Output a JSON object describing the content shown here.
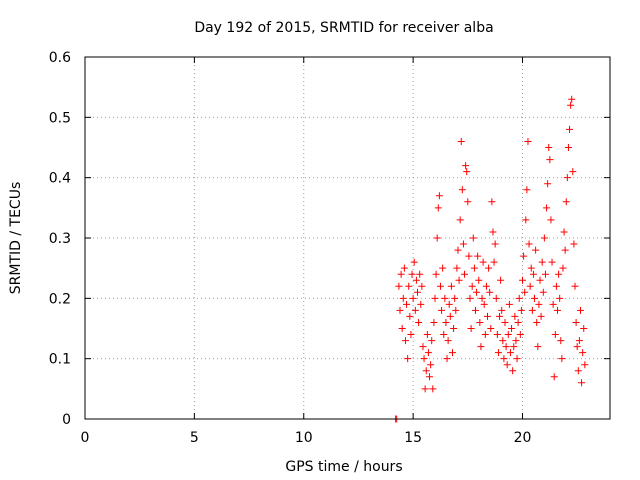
{
  "chart_data": {
    "type": "scatter",
    "title": "Day 192 of 2015, SRMTID for receiver alba",
    "xlabel": "GPS time / hours",
    "ylabel": "SRMTID / TECUs",
    "xlim": [
      0,
      24
    ],
    "ylim": [
      0,
      0.6
    ],
    "xticks": [
      0,
      5,
      10,
      15,
      20
    ],
    "yticks": [
      0,
      0.1,
      0.2,
      0.3,
      0.4,
      0.5,
      0.6
    ],
    "xtick_labels": [
      "0",
      "5",
      "10",
      "15",
      "20"
    ],
    "ytick_labels": [
      "0",
      "0.1",
      "0.2",
      "0.3",
      "0.4",
      "0.5",
      "0.6"
    ],
    "grid": true,
    "marker": "+",
    "color": "#ff0000",
    "series": [
      {
        "name": "SRMTID",
        "points": [
          [
            14.2,
            0.0
          ],
          [
            14.25,
            0.0
          ],
          [
            14.35,
            0.22
          ],
          [
            14.4,
            0.18
          ],
          [
            14.45,
            0.24
          ],
          [
            14.5,
            0.15
          ],
          [
            14.55,
            0.2
          ],
          [
            14.6,
            0.25
          ],
          [
            14.65,
            0.13
          ],
          [
            14.7,
            0.19
          ],
          [
            14.75,
            0.1
          ],
          [
            14.8,
            0.22
          ],
          [
            14.85,
            0.17
          ],
          [
            14.9,
            0.14
          ],
          [
            14.95,
            0.24
          ],
          [
            15.0,
            0.2
          ],
          [
            15.05,
            0.26
          ],
          [
            15.1,
            0.18
          ],
          [
            15.15,
            0.23
          ],
          [
            15.2,
            0.21
          ],
          [
            15.25,
            0.16
          ],
          [
            15.3,
            0.24
          ],
          [
            15.35,
            0.19
          ],
          [
            15.4,
            0.22
          ],
          [
            15.45,
            0.12
          ],
          [
            15.5,
            0.1
          ],
          [
            15.55,
            0.05
          ],
          [
            15.6,
            0.08
          ],
          [
            15.65,
            0.14
          ],
          [
            15.7,
            0.11
          ],
          [
            15.75,
            0.07
          ],
          [
            15.8,
            0.09
          ],
          [
            15.85,
            0.13
          ],
          [
            15.9,
            0.05
          ],
          [
            15.95,
            0.16
          ],
          [
            16.0,
            0.2
          ],
          [
            16.05,
            0.24
          ],
          [
            16.1,
            0.3
          ],
          [
            16.15,
            0.35
          ],
          [
            16.2,
            0.37
          ],
          [
            16.25,
            0.22
          ],
          [
            16.3,
            0.18
          ],
          [
            16.35,
            0.25
          ],
          [
            16.4,
            0.14
          ],
          [
            16.45,
            0.2
          ],
          [
            16.5,
            0.16
          ],
          [
            16.55,
            0.1
          ],
          [
            16.6,
            0.13
          ],
          [
            16.65,
            0.19
          ],
          [
            16.7,
            0.17
          ],
          [
            16.75,
            0.22
          ],
          [
            16.8,
            0.11
          ],
          [
            16.85,
            0.15
          ],
          [
            16.9,
            0.2
          ],
          [
            16.95,
            0.18
          ],
          [
            17.0,
            0.25
          ],
          [
            17.05,
            0.28
          ],
          [
            17.1,
            0.23
          ],
          [
            17.15,
            0.33
          ],
          [
            17.2,
            0.46
          ],
          [
            17.25,
            0.38
          ],
          [
            17.3,
            0.29
          ],
          [
            17.35,
            0.24
          ],
          [
            17.4,
            0.42
          ],
          [
            17.45,
            0.41
          ],
          [
            17.5,
            0.36
          ],
          [
            17.55,
            0.27
          ],
          [
            17.6,
            0.2
          ],
          [
            17.65,
            0.15
          ],
          [
            17.7,
            0.22
          ],
          [
            17.75,
            0.3
          ],
          [
            17.8,
            0.25
          ],
          [
            17.85,
            0.18
          ],
          [
            17.9,
            0.21
          ],
          [
            17.95,
            0.27
          ],
          [
            18.0,
            0.23
          ],
          [
            18.05,
            0.16
          ],
          [
            18.1,
            0.12
          ],
          [
            18.15,
            0.2
          ],
          [
            18.2,
            0.26
          ],
          [
            18.25,
            0.19
          ],
          [
            18.3,
            0.14
          ],
          [
            18.35,
            0.22
          ],
          [
            18.4,
            0.17
          ],
          [
            18.45,
            0.25
          ],
          [
            18.5,
            0.21
          ],
          [
            18.55,
            0.15
          ],
          [
            18.6,
            0.36
          ],
          [
            18.65,
            0.31
          ],
          [
            18.7,
            0.26
          ],
          [
            18.75,
            0.29
          ],
          [
            18.8,
            0.2
          ],
          [
            18.85,
            0.14
          ],
          [
            18.9,
            0.11
          ],
          [
            18.95,
            0.17
          ],
          [
            19.0,
            0.23
          ],
          [
            19.05,
            0.18
          ],
          [
            19.1,
            0.13
          ],
          [
            19.15,
            0.1
          ],
          [
            19.2,
            0.16
          ],
          [
            19.25,
            0.12
          ],
          [
            19.3,
            0.09
          ],
          [
            19.35,
            0.14
          ],
          [
            19.4,
            0.19
          ],
          [
            19.45,
            0.11
          ],
          [
            19.5,
            0.15
          ],
          [
            19.55,
            0.08
          ],
          [
            19.6,
            0.12
          ],
          [
            19.65,
            0.17
          ],
          [
            19.7,
            0.13
          ],
          [
            19.75,
            0.1
          ],
          [
            19.8,
            0.16
          ],
          [
            19.85,
            0.2
          ],
          [
            19.9,
            0.14
          ],
          [
            19.95,
            0.18
          ],
          [
            20.0,
            0.23
          ],
          [
            20.05,
            0.27
          ],
          [
            20.1,
            0.21
          ],
          [
            20.15,
            0.33
          ],
          [
            20.2,
            0.38
          ],
          [
            20.25,
            0.46
          ],
          [
            20.3,
            0.29
          ],
          [
            20.35,
            0.22
          ],
          [
            20.4,
            0.25
          ],
          [
            20.45,
            0.18
          ],
          [
            20.5,
            0.24
          ],
          [
            20.55,
            0.2
          ],
          [
            20.6,
            0.28
          ],
          [
            20.65,
            0.16
          ],
          [
            20.7,
            0.12
          ],
          [
            20.75,
            0.19
          ],
          [
            20.8,
            0.23
          ],
          [
            20.85,
            0.17
          ],
          [
            20.9,
            0.26
          ],
          [
            20.95,
            0.21
          ],
          [
            21.0,
            0.3
          ],
          [
            21.05,
            0.24
          ],
          [
            21.1,
            0.35
          ],
          [
            21.15,
            0.39
          ],
          [
            21.2,
            0.45
          ],
          [
            21.25,
            0.43
          ],
          [
            21.3,
            0.33
          ],
          [
            21.35,
            0.26
          ],
          [
            21.4,
            0.19
          ],
          [
            21.45,
            0.07
          ],
          [
            21.5,
            0.14
          ],
          [
            21.55,
            0.22
          ],
          [
            21.6,
            0.18
          ],
          [
            21.65,
            0.24
          ],
          [
            21.7,
            0.2
          ],
          [
            21.75,
            0.13
          ],
          [
            21.8,
            0.1
          ],
          [
            21.85,
            0.25
          ],
          [
            21.9,
            0.31
          ],
          [
            21.95,
            0.28
          ],
          [
            22.0,
            0.36
          ],
          [
            22.05,
            0.4
          ],
          [
            22.1,
            0.45
          ],
          [
            22.15,
            0.48
          ],
          [
            22.2,
            0.52
          ],
          [
            22.25,
            0.53
          ],
          [
            22.3,
            0.41
          ],
          [
            22.35,
            0.29
          ],
          [
            22.4,
            0.22
          ],
          [
            22.45,
            0.16
          ],
          [
            22.5,
            0.12
          ],
          [
            22.55,
            0.08
          ],
          [
            22.6,
            0.13
          ],
          [
            22.65,
            0.18
          ],
          [
            22.7,
            0.06
          ],
          [
            22.75,
            0.11
          ],
          [
            22.8,
            0.15
          ],
          [
            22.85,
            0.09
          ]
        ]
      }
    ]
  }
}
